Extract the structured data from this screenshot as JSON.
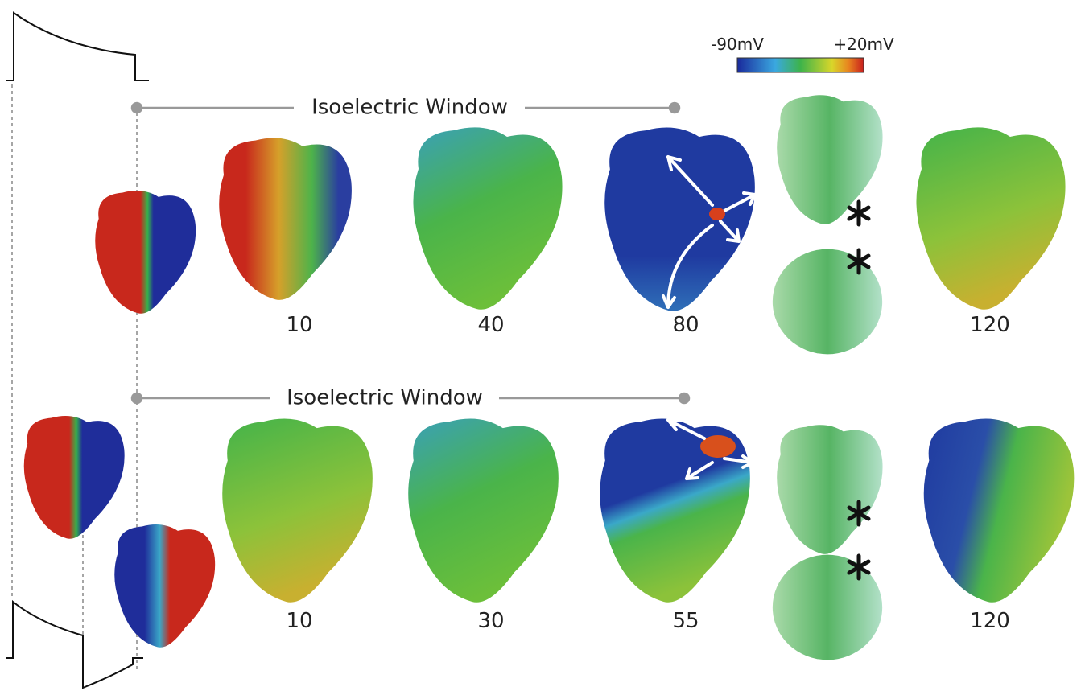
{
  "colorbar": {
    "min_label": "-90mV",
    "max_label": "+20mV"
  },
  "rows": [
    {
      "window_label": "Isoelectric Window",
      "times": [
        10,
        40,
        80,
        120
      ]
    },
    {
      "window_label": "Isoelectric Window",
      "times": [
        10,
        30,
        55,
        120
      ]
    }
  ]
}
